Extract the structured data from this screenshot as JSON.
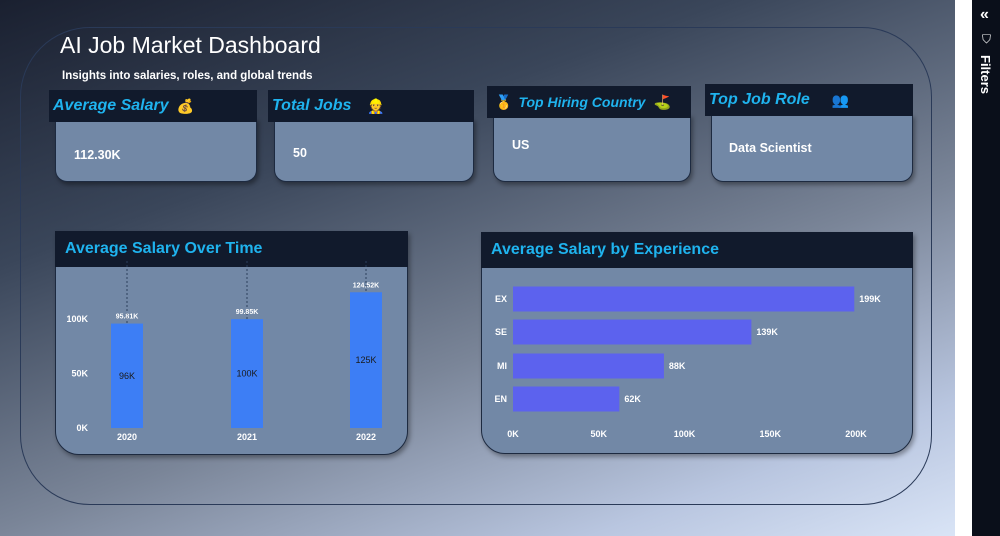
{
  "header": {
    "title": "AI Job Market Dashboard",
    "subtitle": "Insights into salaries, roles, and global trends"
  },
  "kpis": [
    {
      "title": "Average Salary",
      "icon": "money-bag-icon",
      "glyph": "💰",
      "value": "112.30K"
    },
    {
      "title": "Total Jobs",
      "icon": "worker-icon",
      "glyph": "👷",
      "value": "50"
    },
    {
      "title": "Top Hiring Country",
      "icon": "medal-icon",
      "glyph": "🥇",
      "value": "US"
    },
    {
      "title": "Top Job Role",
      "icon": "team-icon",
      "glyph": "👥",
      "value": "Data Scientist"
    }
  ],
  "filters": {
    "label": "Filters",
    "collapse_glyph": "«",
    "funnel_glyph": "⛉"
  },
  "chart_data": [
    {
      "type": "bar",
      "title": "Average Salary Over Time",
      "categories": [
        "2020",
        "2021",
        "2022"
      ],
      "values": [
        95810,
        99850,
        124520
      ],
      "data_labels": [
        "96K",
        "100K",
        "125K"
      ],
      "top_labels": [
        "95.81K",
        "99.85K",
        "124.52K"
      ],
      "yticks": [
        "0K",
        "50K",
        "100K"
      ],
      "ylim": [
        0,
        130000
      ],
      "bar_color": "#3d7ef5"
    },
    {
      "type": "bar",
      "orientation": "horizontal",
      "title": "Average Salary by Experience",
      "categories": [
        "EX",
        "SE",
        "MI",
        "EN"
      ],
      "values": [
        199000,
        139000,
        88000,
        62000
      ],
      "data_labels": [
        "199K",
        "139K",
        "88K",
        "62K"
      ],
      "xticks": [
        "0K",
        "50K",
        "100K",
        "150K",
        "200K"
      ],
      "xlim": [
        0,
        200000
      ],
      "bar_color": "#5c62ee"
    }
  ]
}
